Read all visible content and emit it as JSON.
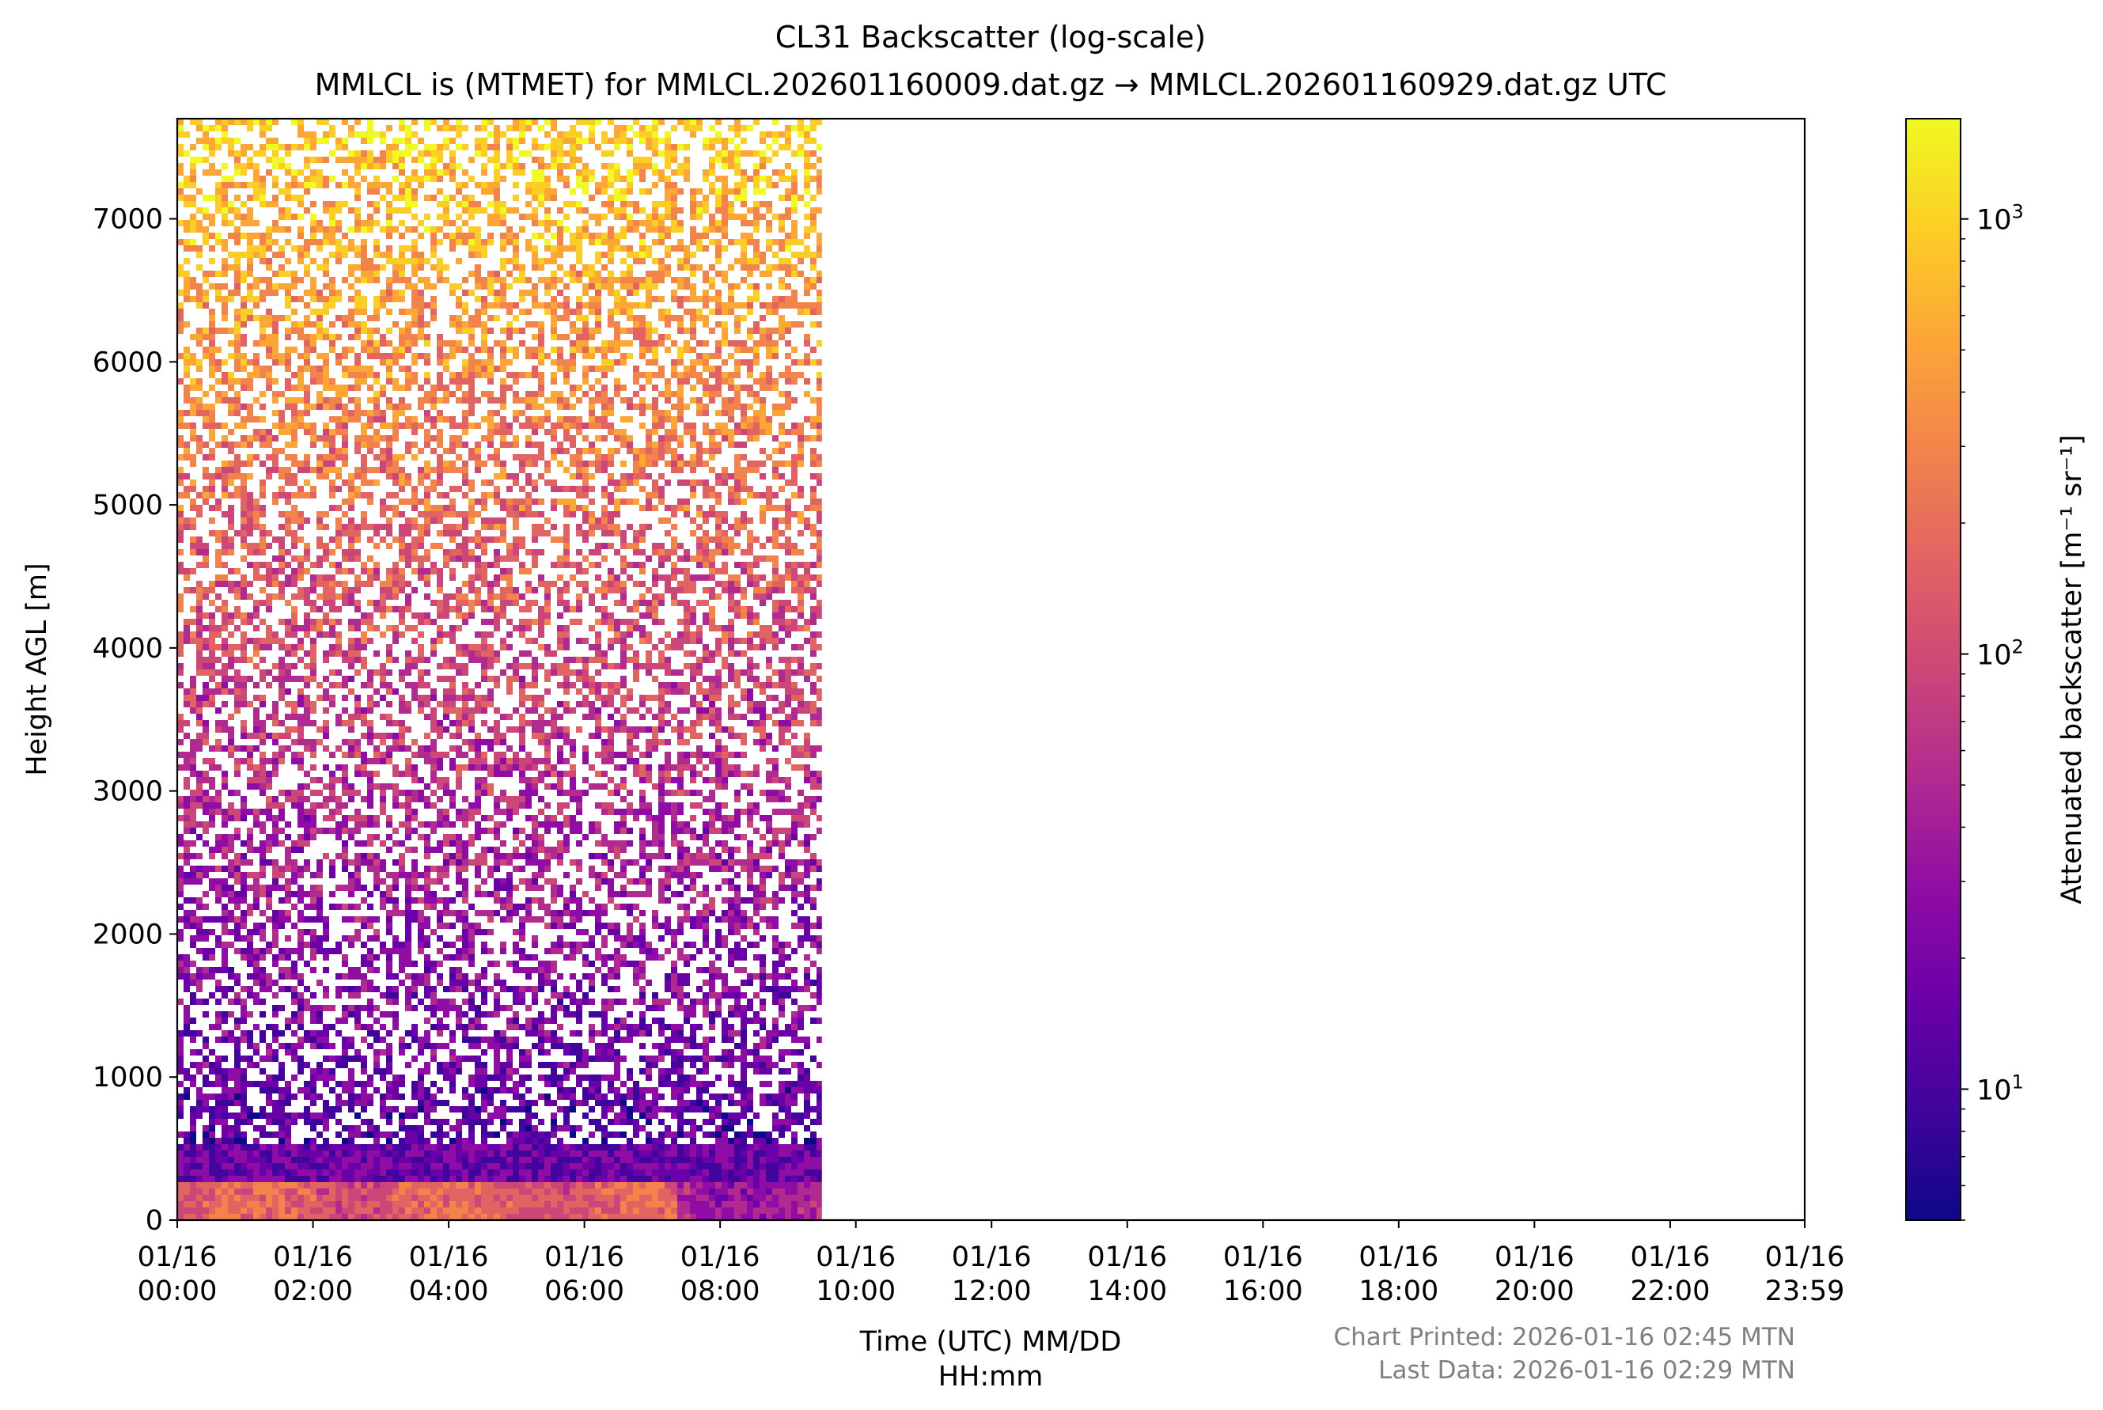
{
  "chart_data": {
    "type": "heatmap",
    "title": "CL31 Backscatter (log-scale)",
    "subtitle": "MMLCL is (MTMET) for MMLCL.202601160009.dat.gz → MMLCL.202601160929.dat.gz UTC",
    "xlabel_line1": "Time (UTC) MM/DD",
    "xlabel_line2": "HH:mm",
    "ylabel": "Height AGL [m]",
    "x_ticks": [
      {
        "date": "01/16",
        "time": "00:00",
        "hours": 0
      },
      {
        "date": "01/16",
        "time": "02:00",
        "hours": 2
      },
      {
        "date": "01/16",
        "time": "04:00",
        "hours": 4
      },
      {
        "date": "01/16",
        "time": "06:00",
        "hours": 6
      },
      {
        "date": "01/16",
        "time": "08:00",
        "hours": 8
      },
      {
        "date": "01/16",
        "time": "10:00",
        "hours": 10
      },
      {
        "date": "01/16",
        "time": "12:00",
        "hours": 12
      },
      {
        "date": "01/16",
        "time": "14:00",
        "hours": 14
      },
      {
        "date": "01/16",
        "time": "16:00",
        "hours": 16
      },
      {
        "date": "01/16",
        "time": "18:00",
        "hours": 18
      },
      {
        "date": "01/16",
        "time": "20:00",
        "hours": 20
      },
      {
        "date": "01/16",
        "time": "22:00",
        "hours": 22
      },
      {
        "date": "01/16",
        "time": "23:59",
        "hours": 23.983
      }
    ],
    "x_range_hours": [
      0,
      23.983
    ],
    "data_end_hours": 9.5,
    "y_ticks": [
      0,
      1000,
      2000,
      3000,
      4000,
      5000,
      6000,
      7000
    ],
    "ylim": [
      0,
      7700
    ],
    "colorbar": {
      "label": "Attenuated backscatter [m⁻¹ sr⁻¹]",
      "scale": "log",
      "range": [
        5,
        1700
      ],
      "ticks": [
        {
          "value": 10,
          "base": "10",
          "exp": "1"
        },
        {
          "value": 100,
          "base": "10",
          "exp": "2"
        },
        {
          "value": 1000,
          "base": "10",
          "exp": "3"
        }
      ],
      "colormap": "plasma"
    },
    "footer": {
      "printed": "Chart Printed: 2026-01-16 02:45 MTN",
      "last_data": "Last Data: 2026-01-16 02:29 MTN"
    },
    "colors": {
      "footer_text": "#808080",
      "missing_data": "#ffffff"
    }
  }
}
